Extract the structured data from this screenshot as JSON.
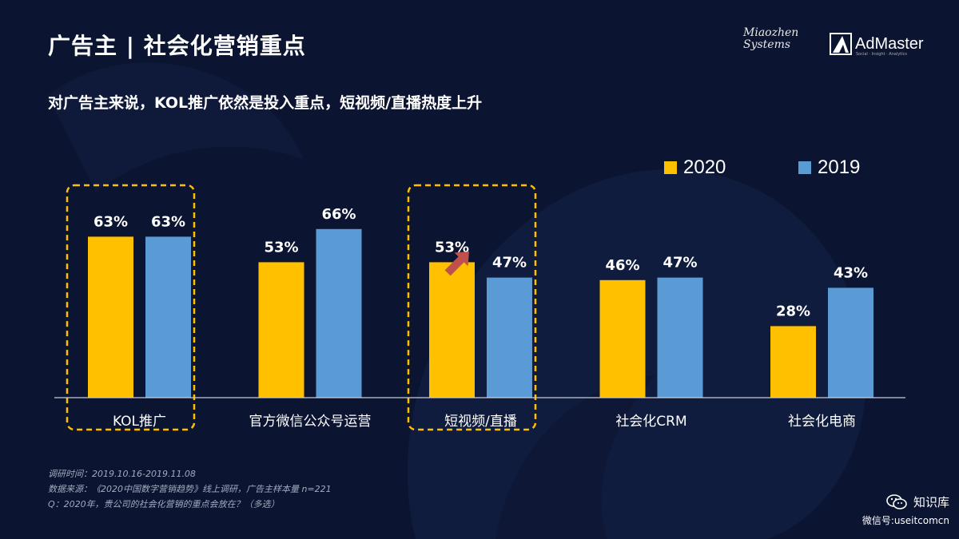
{
  "header": {
    "title": "广告主 | 社会化营销重点",
    "subtitle": "对广告主来说，KOL推广依然是投入重点，短视频/直播热度上升"
  },
  "logos": {
    "miaozhen_line1": "Miaozhen",
    "miaozhen_line2": "Systems",
    "admaster_name": "AdMaster",
    "admaster_tagline": "Social · Insight · Analytics"
  },
  "legend": [
    {
      "label": "2020",
      "color": "#ffc000"
    },
    {
      "label": "2019",
      "color": "#5b9bd5"
    }
  ],
  "chart_data": {
    "type": "bar",
    "categories": [
      "KOL推广",
      "官方微信公众号运营",
      "短视频/直播",
      "社会化CRM",
      "社会化电商"
    ],
    "series": [
      {
        "name": "2020",
        "values": [
          63,
          53,
          53,
          46,
          28
        ],
        "labels": [
          "63%",
          "53%",
          "53%",
          "46%",
          "28%"
        ],
        "color": "#ffc000"
      },
      {
        "name": "2019",
        "values": [
          63,
          66,
          47,
          47,
          43
        ],
        "labels": [
          "63%",
          "66%",
          "47%",
          "47%",
          "43%"
        ],
        "color": "#5b9bd5"
      }
    ],
    "highlighted_categories": [
      "KOL推广",
      "短视频/直播"
    ],
    "highlight_color": "#ffc000",
    "arrow_color": "#c0504d",
    "grid": false,
    "legend_position": "top-right"
  },
  "footnotes": [
    "调研时间：2019.10.16-2019.11.08",
    "数据来源：《2020中国数字营销趋势》线上调研，广告主样本量 n=221",
    "Q：2020年，贵公司的社会化营销的重点会放在？（多选）"
  ],
  "watermark": {
    "name": "知识库",
    "account": "微信号:useitcomcn"
  }
}
